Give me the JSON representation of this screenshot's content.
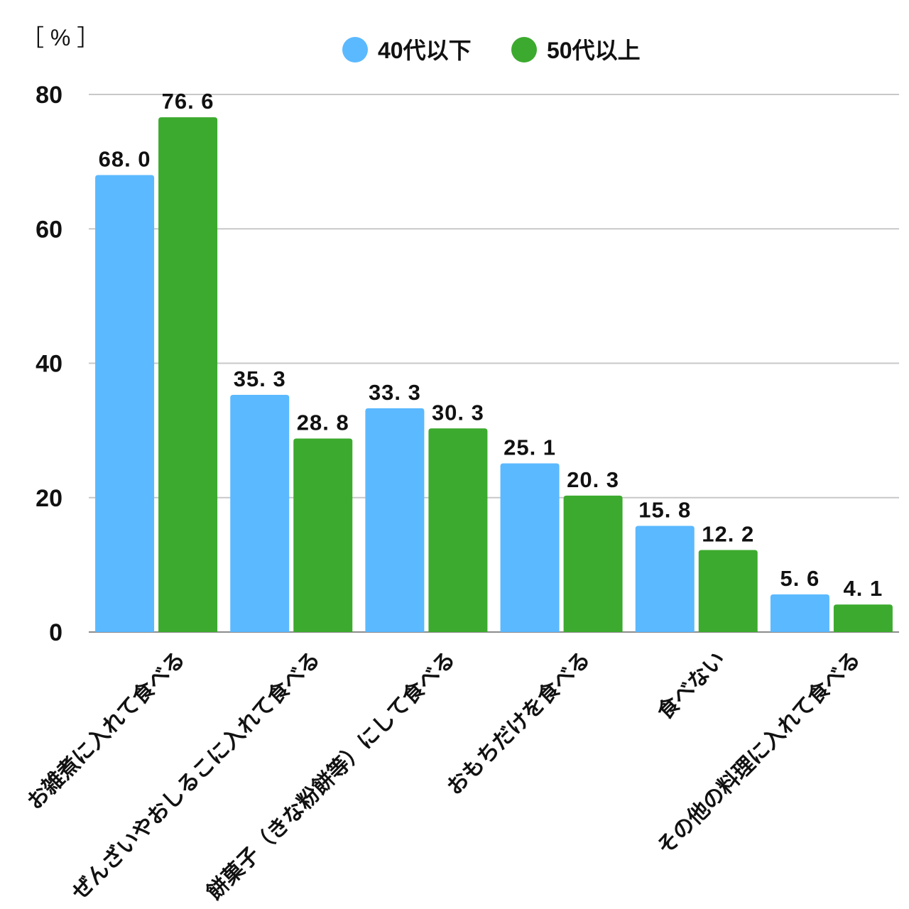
{
  "chart_data": {
    "type": "bar",
    "unit_label": "［ % ］",
    "categories": [
      "お雑煮に入れて食べる",
      "ぜんざいやおしるこに入れて食べる",
      "餅菓子（きな粉餅等）にして食べる",
      "おもちだけを食べる",
      "食べない",
      "その他の料理に入れて食べる"
    ],
    "series": [
      {
        "name": "40代以下",
        "color": "#5BB9FF",
        "values": [
          68.0,
          35.3,
          33.3,
          25.1,
          15.8,
          5.6
        ],
        "labels": [
          "68. 0",
          "35. 3",
          "33. 3",
          "25. 1",
          "15. 8",
          "5. 6"
        ]
      },
      {
        "name": "50代以上",
        "color": "#3CAA2E",
        "values": [
          76.6,
          28.8,
          30.3,
          20.3,
          12.2,
          4.1
        ],
        "labels": [
          "76. 6",
          "28. 8",
          "30. 3",
          "20. 3",
          "12. 2",
          "4. 1"
        ]
      }
    ],
    "ylim": [
      0,
      80
    ],
    "yticks": [
      0,
      20,
      40,
      60,
      80
    ],
    "grid": true,
    "legend_position": "top-center"
  }
}
